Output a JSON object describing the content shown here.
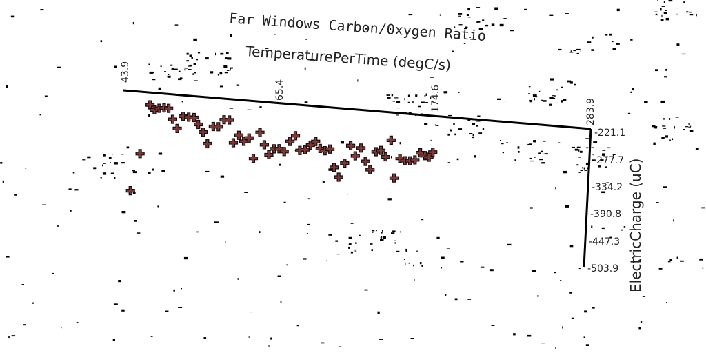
{
  "chart_data": {
    "type": "scatter",
    "title": "Far Windows Carbon/Oxygen Ratio",
    "xlabel": "TemperaturePerTime (degC/s)",
    "ylabel": "ElectricCharge (uC)",
    "x_ticks": [
      "43.9",
      "65.4",
      "174.6",
      "283.9"
    ],
    "y_ticks": [
      "-221.1",
      "-277.7",
      "-334.2",
      "-390.8",
      "-447.3",
      "-503.9"
    ],
    "xlim": [
      -43.9,
      283.9
    ],
    "ylim": [
      -503.9,
      -221.1
    ],
    "marker_color": "#7a3a3a",
    "points": [
      [
        -38.8,
        -400.3
      ],
      [
        -33.4,
        -322.9
      ],
      [
        -28.1,
        -221.7
      ],
      [
        -24.9,
        -231.3
      ],
      [
        -21.6,
        -227.1
      ],
      [
        -18.2,
        -225.6
      ],
      [
        -15.0,
        -225.7
      ],
      [
        -11.8,
        -247.4
      ],
      [
        -8.3,
        -265.3
      ],
      [
        -4.6,
        -239.3
      ],
      [
        -0.7,
        -240.3
      ],
      [
        3.0,
        -240.2
      ],
      [
        6.3,
        -253.5
      ],
      [
        9.9,
        -268.4
      ],
      [
        13.3,
        -291.4
      ],
      [
        16.8,
        -255.2
      ],
      [
        20.4,
        -254.8
      ],
      [
        24.1,
        -239.6
      ],
      [
        27.8,
        -239.1
      ],
      [
        31.4,
        -285.0
      ],
      [
        35.0,
        -268.8
      ],
      [
        38.6,
        -280.4
      ],
      [
        42.2,
        -272.8
      ],
      [
        45.9,
        -313.5
      ],
      [
        49.6,
        -259.7
      ],
      [
        53.1,
        -283.8
      ],
      [
        56.6,
        -303.5
      ],
      [
        60.1,
        -290.5
      ],
      [
        63.6,
        -289.5
      ],
      [
        67.2,
        -294.4
      ],
      [
        70.9,
        -272.8
      ],
      [
        74.5,
        -260.1
      ],
      [
        78.1,
        -289.6
      ],
      [
        81.7,
        -287.2
      ],
      [
        85.3,
        -276.8
      ],
      [
        88.8,
        -268.6
      ],
      [
        92.2,
        -282.1
      ],
      [
        95.6,
        -285.8
      ],
      [
        99.1,
        -281.6
      ],
      [
        102.6,
        -318.5
      ],
      [
        106.1,
        -337.6
      ],
      [
        109.8,
        -307.9
      ],
      [
        113.4,
        -271.1
      ],
      [
        117.0,
        -291.2
      ],
      [
        120.7,
        -274.4
      ],
      [
        124.3,
        -300.8
      ],
      [
        127.8,
        -316.9
      ],
      [
        131.3,
        -279.2
      ],
      [
        134.7,
        -275.8
      ],
      [
        138.1,
        -288.2
      ],
      [
        141.5,
        -253.2
      ],
      [
        144.8,
        -329.9
      ],
      [
        148.3,
        -288.7
      ],
      [
        151.8,
        -292.7
      ],
      [
        155.3,
        -292.0
      ],
      [
        158.8,
        -289.4
      ],
      [
        162.3,
        -274.0
      ],
      [
        165.7,
        -279.0
      ],
      [
        168.5,
        -281.5
      ],
      [
        171.0,
        -270.6
      ]
    ]
  }
}
